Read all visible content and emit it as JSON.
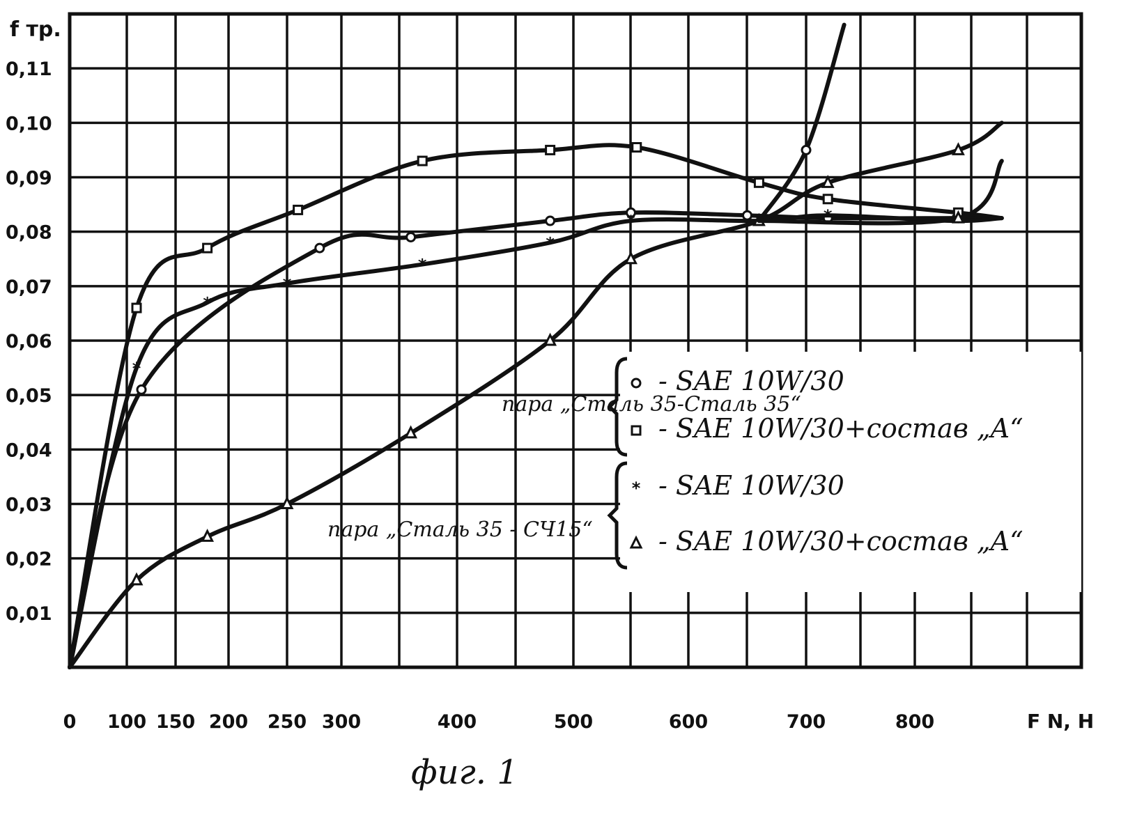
{
  "chart_data": {
    "type": "line",
    "title": "",
    "ylabel": "f тр.",
    "xlabel": "F N, H",
    "caption": "фиг. 1",
    "xlim": [
      0,
      880
    ],
    "ylim": [
      0,
      0.12
    ],
    "grid": true,
    "x_ticks": [
      {
        "value": 0,
        "label": "0"
      },
      {
        "value": 100,
        "label": "100"
      },
      {
        "value": 150,
        "label": "150"
      },
      {
        "value": 200,
        "label": "200"
      },
      {
        "value": 250,
        "label": "250"
      },
      {
        "value": 300,
        "label": "300"
      },
      {
        "value": 400,
        "label": "400"
      },
      {
        "value": 500,
        "label": "500"
      },
      {
        "value": 600,
        "label": "600"
      },
      {
        "value": 700,
        "label": "700"
      },
      {
        "value": 800,
        "label": "800"
      }
    ],
    "y_ticks": [
      {
        "value": 0.01,
        "label": "0,01"
      },
      {
        "value": 0.02,
        "label": "0,02"
      },
      {
        "value": 0.03,
        "label": "0,03"
      },
      {
        "value": 0.04,
        "label": "0,04"
      },
      {
        "value": 0.05,
        "label": "0,05"
      },
      {
        "value": 0.06,
        "label": "0,06"
      },
      {
        "value": 0.07,
        "label": "0,07"
      },
      {
        "value": 0.08,
        "label": "0,08"
      },
      {
        "value": 0.09,
        "label": "0,09"
      },
      {
        "value": 0.1,
        "label": "0,10"
      },
      {
        "value": 0.11,
        "label": "0,11"
      }
    ],
    "legend_groups": [
      {
        "pair_label": "пара „Сталь 35-Сталь 35“",
        "entries": [
          {
            "marker": "circle",
            "label": "- SAE 10W/30"
          },
          {
            "marker": "square",
            "label": "- SAE 10W/30+состав „A“"
          }
        ]
      },
      {
        "pair_label": "пара „Сталь 35 - СЧ15“",
        "entries": [
          {
            "marker": "star",
            "label": "- SAE 10W/30"
          },
          {
            "marker": "triangle",
            "label": "- SAE 10W/30+состав „A“"
          }
        ]
      }
    ],
    "series": [
      {
        "marker": "circle",
        "x": [
          0,
          115,
          280,
          360,
          480,
          550,
          650,
          720,
          840,
          880
        ],
        "y": [
          0,
          0.051,
          0.077,
          0.079,
          0.082,
          0.0835,
          0.083,
          0.0825,
          0.0825,
          0.0825
        ]
      },
      {
        "marker": "square",
        "x": [
          0,
          110,
          180,
          260,
          370,
          480,
          555,
          660,
          720,
          840,
          880
        ],
        "y": [
          0,
          0.066,
          0.077,
          0.084,
          0.093,
          0.095,
          0.0955,
          0.089,
          0.086,
          0.0835,
          0.0825
        ]
      },
      {
        "marker": "star",
        "x": [
          0,
          110,
          180,
          250,
          370,
          480,
          550,
          660,
          720,
          835,
          880
        ],
        "y": [
          0,
          0.055,
          0.067,
          0.0705,
          0.074,
          0.078,
          0.082,
          0.082,
          0.083,
          0.082,
          0.0825
        ]
      },
      {
        "marker": "triangle",
        "x": [
          0,
          110,
          180,
          250,
          360,
          480,
          550,
          660,
          720,
          840,
          880
        ],
        "y": [
          0,
          0.016,
          0.024,
          0.03,
          0.043,
          0.06,
          0.075,
          0.082,
          0.089,
          0.095,
          0.1
        ]
      },
      {
        "marker": "circle",
        "x": [
          660,
          700,
          735
        ],
        "y": [
          0.082,
          0.095,
          0.118
        ]
      },
      {
        "marker": "triangle",
        "x": [
          660,
          840,
          880
        ],
        "y": [
          0.082,
          0.0825,
          0.093
        ]
      }
    ]
  }
}
